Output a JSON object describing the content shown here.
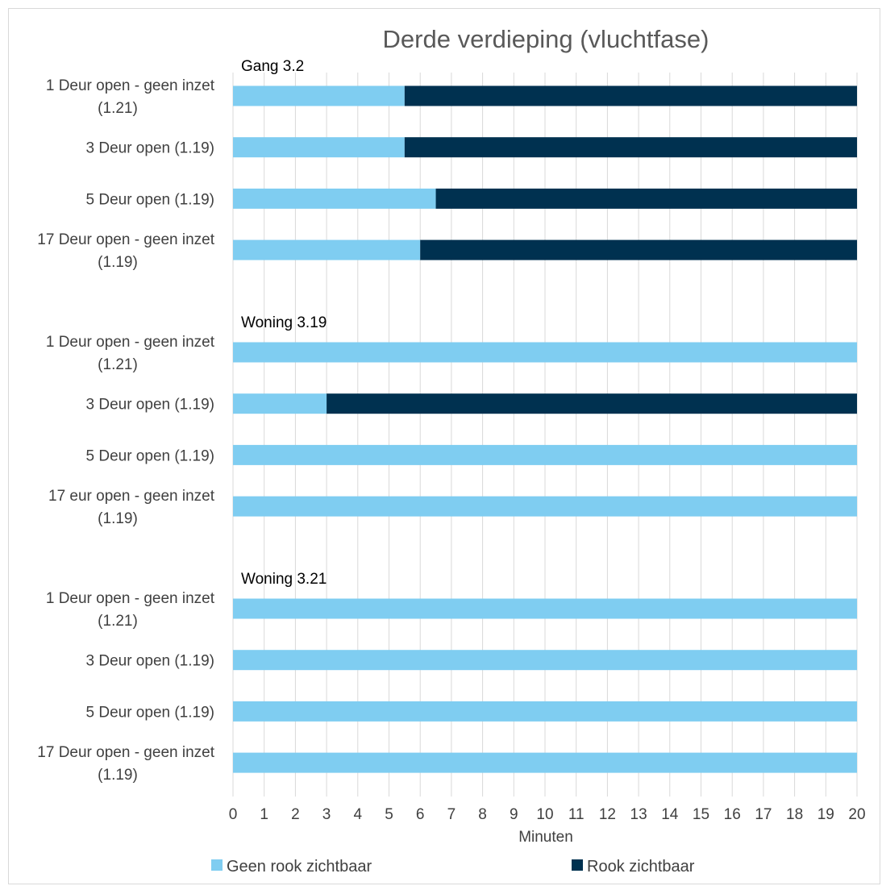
{
  "chart_data": {
    "type": "bar",
    "orientation": "horizontal",
    "stacked": true,
    "title": "Derde verdieping (vluchtfase)",
    "xlabel": "Minuten",
    "ylabel": "",
    "xlim": [
      0,
      20
    ],
    "xticks": [
      "0",
      "1",
      "2",
      "3",
      "4",
      "5",
      "6",
      "7",
      "8",
      "9",
      "10",
      "11",
      "12",
      "13",
      "14",
      "15",
      "16",
      "17",
      "18",
      "19",
      "20"
    ],
    "grid": true,
    "legend_position": "bottom",
    "colors": {
      "geen_rook": "#7fcdf1",
      "rook": "#003150",
      "grid": "#d9d9d9"
    },
    "series": [
      {
        "name": "Geen rook zichtbaar",
        "color": "#7fcdf1"
      },
      {
        "name": "Rook zichtbaar",
        "color": "#003150"
      }
    ],
    "groups": [
      {
        "name": "Gang 3.2",
        "bars": [
          {
            "label": [
              "1 Deur open - geen inzet",
              "(1.21)"
            ],
            "values": [
              5.5,
              14.5
            ]
          },
          {
            "label": [
              "3 Deur open (1.19)"
            ],
            "values": [
              5.5,
              14.5
            ]
          },
          {
            "label": [
              "5 Deur open (1.19)"
            ],
            "values": [
              6.5,
              13.5
            ]
          },
          {
            "label": [
              "17 Deur open - geen inzet",
              "(1.19)"
            ],
            "values": [
              6.0,
              14.0
            ]
          }
        ]
      },
      {
        "name": "Woning 3.19",
        "bars": [
          {
            "label": [
              "1 Deur open - geen inzet",
              "(1.21)"
            ],
            "values": [
              20,
              0
            ]
          },
          {
            "label": [
              "3 Deur open (1.19)"
            ],
            "values": [
              3,
              17
            ]
          },
          {
            "label": [
              "5 Deur open (1.19)"
            ],
            "values": [
              20,
              0
            ]
          },
          {
            "label": [
              "17 eur open - geen inzet",
              "(1.19)"
            ],
            "values": [
              20,
              0
            ]
          }
        ]
      },
      {
        "name": "Woning 3.21",
        "bars": [
          {
            "label": [
              "1 Deur open - geen inzet",
              "(1.21)"
            ],
            "values": [
              20,
              0
            ]
          },
          {
            "label": [
              "3 Deur open (1.19)"
            ],
            "values": [
              20,
              0
            ]
          },
          {
            "label": [
              "5 Deur open (1.19)"
            ],
            "values": [
              20,
              0
            ]
          },
          {
            "label": [
              "17 Deur open - geen inzet",
              "(1.19)"
            ],
            "values": [
              20,
              0
            ]
          }
        ]
      }
    ]
  }
}
